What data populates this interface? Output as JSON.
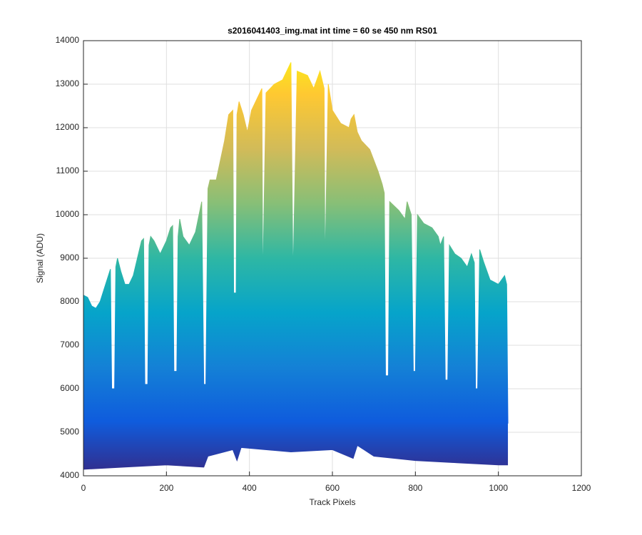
{
  "chart_data": {
    "type": "area",
    "title": "s2016041403_img.mat int time = 60 se  450 nm RS01",
    "xlabel": "Track Pixels",
    "ylabel": "Signal (ADU)",
    "xlim": [
      0,
      1200
    ],
    "xticks": [
      0,
      200,
      400,
      600,
      800,
      1000,
      1200
    ],
    "ylim": [
      4000,
      14000
    ],
    "yticks": [
      4000,
      5000,
      6000,
      7000,
      8000,
      9000,
      10000,
      11000,
      12000,
      13000,
      14000
    ],
    "grid": true,
    "colormap": [
      "#352a87",
      "#0f5cdd",
      "#1481d6",
      "#06a4ca",
      "#2eb7a4",
      "#87bf77",
      "#d1bb59",
      "#fec832",
      "#f9fb0e"
    ],
    "series": [
      {
        "x": [
          0,
          10,
          20,
          30,
          40,
          50,
          60,
          65,
          68,
          75,
          78,
          82,
          90,
          100,
          110,
          120,
          130,
          140,
          145,
          148,
          155,
          158,
          162,
          170,
          185,
          200,
          210,
          215,
          218,
          225,
          228,
          232,
          240,
          255,
          270,
          285,
          290,
          295,
          300,
          305,
          320,
          340,
          350,
          360,
          362,
          368,
          370,
          375,
          385,
          395,
          405,
          420,
          430,
          432,
          440,
          460,
          480,
          500,
          505,
          515,
          540,
          555,
          570,
          580,
          582,
          590,
          600,
          620,
          640,
          645,
          652,
          660,
          670,
          690,
          710,
          720,
          725,
          728,
          735,
          738,
          760,
          775,
          780,
          790,
          795,
          800,
          805,
          820,
          840,
          855,
          860,
          868,
          872,
          878,
          882,
          895,
          910,
          925,
          935,
          942,
          945,
          950,
          955,
          965,
          980,
          1000,
          1015,
          1020,
          1023
        ],
        "values": [
          8150,
          8100,
          7900,
          7850,
          8000,
          8300,
          8600,
          8750,
          6000,
          6000,
          8800,
          9000,
          8700,
          8400,
          8400,
          8600,
          9000,
          9400,
          9450,
          6100,
          6100,
          9300,
          9500,
          9400,
          9100,
          9400,
          9700,
          9750,
          6400,
          6400,
          9500,
          9900,
          9500,
          9300,
          9600,
          10300,
          6100,
          6100,
          10600,
          10800,
          10800,
          11700,
          12300,
          12400,
          8200,
          8200,
          12300,
          12600,
          12300,
          11900,
          12400,
          12700,
          12900,
          8300,
          12800,
          13000,
          13100,
          13500,
          8500,
          13300,
          13200,
          12900,
          13300,
          12900,
          8700,
          13000,
          12400,
          12100,
          12000,
          12200,
          12300,
          11900,
          11700,
          11500,
          11000,
          10700,
          10500,
          6300,
          6300,
          10300,
          10100,
          9900,
          10300,
          10000,
          6400,
          6400,
          10000,
          9800,
          9700,
          9500,
          9300,
          9500,
          6200,
          6200,
          9300,
          9100,
          9000,
          8800,
          9100,
          8900,
          6000,
          6000,
          9200,
          8900,
          8500,
          8400,
          8600,
          8400,
          5200
        ]
      },
      {
        "x": [
          0,
          100,
          200,
          290,
          300,
          360,
          370,
          380,
          500,
          600,
          650,
          660,
          700,
          800,
          900,
          1000,
          1023
        ],
        "values": [
          4150,
          4200,
          4250,
          4200,
          4450,
          4600,
          4350,
          4650,
          4550,
          4600,
          4400,
          4700,
          4450,
          4350,
          4300,
          4250,
          4250
        ]
      }
    ]
  }
}
